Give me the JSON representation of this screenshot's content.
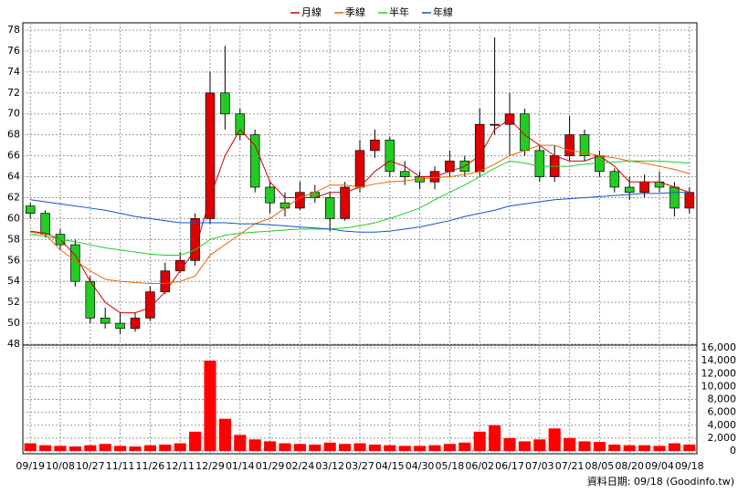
{
  "chart_data": {
    "type": "candlestick",
    "note": "資料日期: 09/18  (Goodinfo.tw)",
    "categories": [
      "09/19",
      null,
      "10/08",
      null,
      "10/27",
      null,
      "11/11",
      null,
      "11/26",
      null,
      "12/11",
      null,
      "12/29",
      null,
      "01/14",
      null,
      "01/29",
      null,
      "02/24",
      null,
      "03/12",
      null,
      "03/27",
      null,
      "04/15",
      null,
      "04/30",
      null,
      "05/18",
      null,
      "06/02",
      null,
      "06/17",
      null,
      "07/03",
      null,
      "07/21",
      null,
      "08/05",
      null,
      "08/20",
      null,
      "09/04",
      null,
      "09/18"
    ],
    "open": [
      61.2,
      60.5,
      58.5,
      57.5,
      54,
      50.5,
      50,
      49.5,
      50.5,
      53,
      55,
      56,
      60,
      72,
      70,
      68,
      63,
      61.5,
      61,
      62.5,
      62,
      60,
      63,
      66.5,
      67.5,
      64.5,
      64,
      63.5,
      64.5,
      65.5,
      64.5,
      69,
      69,
      70,
      66.5,
      64,
      66,
      68,
      66,
      64.5,
      63,
      62.5,
      63.5,
      63,
      61
    ],
    "high": [
      61.5,
      60.8,
      59,
      58,
      54.5,
      51.5,
      51,
      51,
      53.5,
      55.8,
      56.8,
      60.5,
      74,
      76.5,
      70.5,
      68.5,
      63.5,
      62.5,
      63.5,
      63.2,
      62.5,
      63.5,
      67.5,
      68.5,
      67.8,
      65.5,
      64.5,
      65,
      66.5,
      66,
      70.5,
      77.3,
      72,
      70.5,
      67,
      67,
      69.8,
      68.5,
      66.5,
      64.8,
      64,
      64.2,
      64.5,
      63.5,
      63
    ],
    "low": [
      60,
      58.2,
      57,
      53.5,
      50,
      49.5,
      49,
      49.2,
      50.2,
      52.8,
      54.8,
      55.5,
      59.5,
      68.5,
      67.5,
      62.5,
      60.5,
      60.2,
      60.8,
      61.5,
      58.8,
      59.8,
      62.5,
      65.8,
      64,
      63.2,
      62.8,
      62.8,
      64,
      64,
      64,
      68,
      66,
      66,
      63.5,
      63.5,
      65.5,
      65.5,
      64,
      62.5,
      61.8,
      62,
      62.5,
      60.2,
      60.5
    ],
    "close": [
      60.5,
      58.5,
      57.5,
      54,
      50.5,
      50,
      49.5,
      50.5,
      53,
      55,
      56,
      60,
      72,
      70,
      68,
      63,
      61.5,
      61,
      62.5,
      62,
      60,
      63,
      66.5,
      67.5,
      64.5,
      64,
      63.5,
      64.5,
      65.5,
      64.5,
      69,
      69,
      70,
      66.5,
      64,
      66,
      68,
      66,
      64.5,
      63,
      62.5,
      63.5,
      63,
      61,
      62.5
    ],
    "up_color": "#e00000",
    "down_color": "#22cc22",
    "volume": [
      1200,
      900,
      800,
      700,
      900,
      1100,
      800,
      700,
      900,
      1000,
      1200,
      3000,
      14000,
      5000,
      2500,
      1800,
      1500,
      1200,
      1100,
      1000,
      1300,
      1100,
      1200,
      1000,
      900,
      800,
      800,
      900,
      1100,
      1300,
      3000,
      4000,
      2000,
      1500,
      1800,
      3500,
      2000,
      1500,
      1400,
      1000,
      900,
      900,
      800,
      1200,
      1000
    ],
    "volume_color": "#ff0000",
    "series": [
      {
        "name": "月線",
        "color": "#cc0000",
        "values": [
          58.8,
          58.6,
          58,
          56.5,
          54,
          52,
          51,
          51,
          51.5,
          53,
          55,
          57,
          62,
          66,
          68.5,
          67,
          63.5,
          62,
          62,
          62,
          62.5,
          62.5,
          63,
          64.5,
          65.5,
          65,
          64,
          64,
          64.5,
          65,
          66,
          68.5,
          69.5,
          68,
          67,
          66,
          65.5,
          65.5,
          66,
          65,
          63.5,
          63.5,
          63.5,
          63,
          62.5
        ]
      },
      {
        "name": "季線",
        "color": "#ee6600",
        "values": [
          58.7,
          58.5,
          57,
          56,
          55,
          54.2,
          54,
          53.9,
          53.8,
          53.8,
          54,
          54.5,
          56.5,
          57.5,
          58.5,
          59.5,
          60,
          61,
          62,
          62.5,
          63.2,
          63.2,
          63,
          63.3,
          63.5,
          63.6,
          63.8,
          63.9,
          64,
          64.2,
          64.5,
          65.2,
          66,
          66.5,
          67,
          67,
          66.5,
          66.3,
          66,
          65.8,
          65.5,
          65.3,
          65,
          64.7,
          64.3
        ]
      },
      {
        "name": "半年",
        "color": "#22cc22",
        "values": [
          58.5,
          58.3,
          58,
          57.8,
          57.5,
          57.2,
          57,
          56.8,
          56.6,
          56.5,
          56.5,
          57,
          58,
          58.4,
          58.6,
          58.7,
          58.8,
          58.9,
          59,
          59,
          59,
          59.1,
          59.3,
          59.6,
          60,
          60.5,
          61,
          61.8,
          62.5,
          63.2,
          64,
          64.8,
          65.5,
          65.3,
          65,
          65,
          65,
          65.2,
          65.3,
          65.4,
          65.5,
          65.5,
          65.5,
          65.4,
          65.3
        ]
      },
      {
        "name": "年線",
        "color": "#1155cc",
        "values": [
          61.8,
          61.6,
          61.4,
          61.2,
          61,
          60.8,
          60.5,
          60.2,
          60,
          59.8,
          59.6,
          59.6,
          59.6,
          59.6,
          59.5,
          59.5,
          59.4,
          59.3,
          59.2,
          59.1,
          59,
          58.8,
          58.7,
          58.7,
          58.8,
          59,
          59.2,
          59.5,
          59.8,
          60.2,
          60.5,
          60.8,
          61.2,
          61.4,
          61.6,
          61.8,
          61.9,
          62,
          62.1,
          62.2,
          62.3,
          62.4,
          62.4,
          62.5,
          62.5
        ]
      }
    ],
    "ylim": [
      48,
      78
    ],
    "yticks": [
      48,
      50,
      52,
      54,
      56,
      58,
      60,
      62,
      64,
      66,
      68,
      70,
      72,
      74,
      76,
      78
    ],
    "y2lim": [
      0,
      16000
    ],
    "y2ticks": [
      0,
      {
        "value": 2000,
        "label": "2,000"
      },
      {
        "value": 4000,
        "label": "4,000"
      },
      {
        "value": 6000,
        "label": "6,000"
      },
      {
        "value": 8000,
        "label": "8,000"
      },
      {
        "value": 10000,
        "label": "10,000"
      },
      {
        "value": 12000,
        "label": "12,000"
      },
      {
        "value": 14000,
        "label": "14,000"
      },
      {
        "value": 16000,
        "label": "16,000"
      }
    ],
    "grid": true
  }
}
